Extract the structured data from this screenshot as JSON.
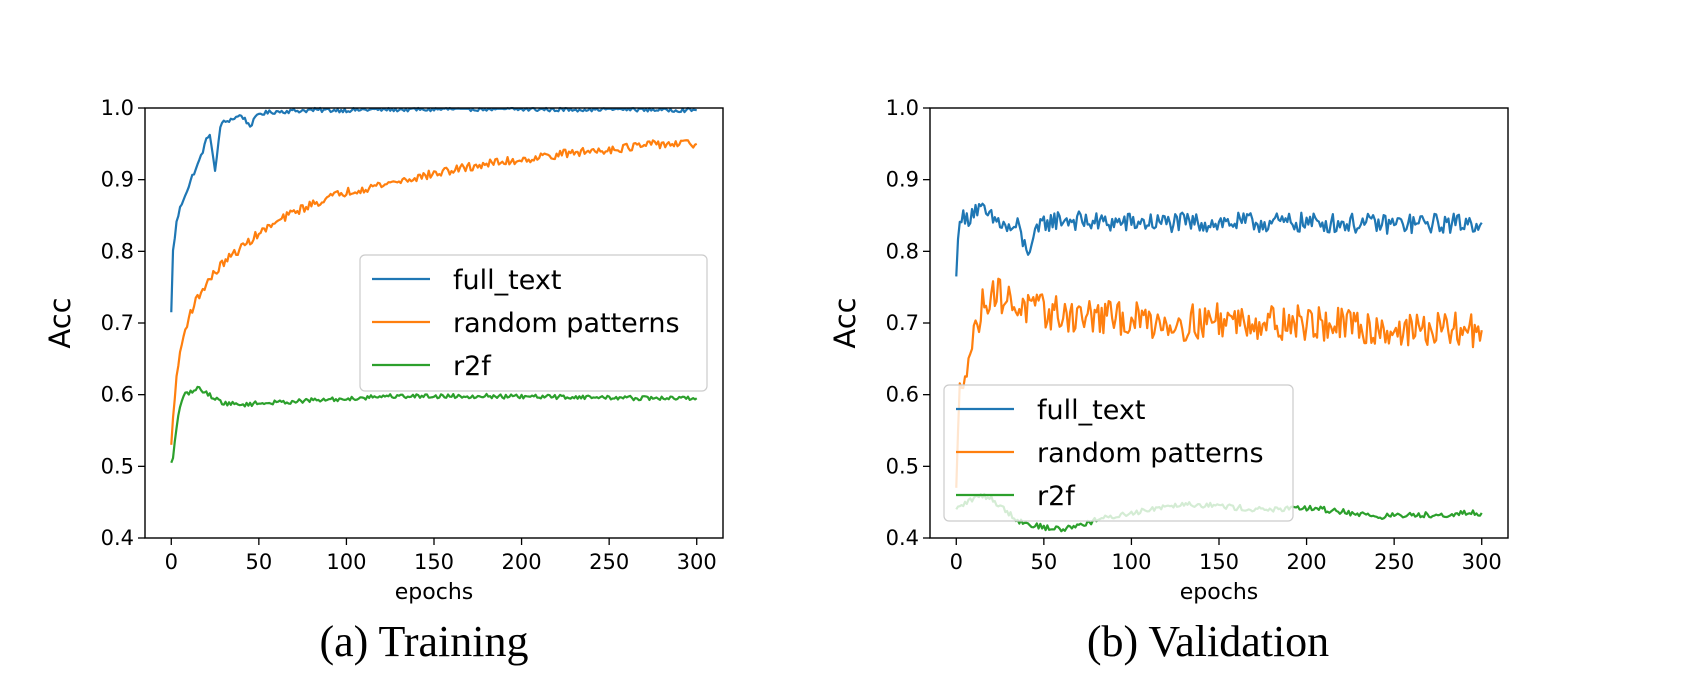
{
  "chart_data": [
    {
      "type": "line",
      "caption": "(a) Training",
      "xlabel": "epochs",
      "ylabel": "Acc",
      "xlim": [
        -15,
        315
      ],
      "ylim": [
        0.4,
        1.0
      ],
      "xticks": [
        "0",
        "50",
        "100",
        "150",
        "200",
        "250",
        "300"
      ],
      "yticks": [
        "0.4",
        "0.5",
        "0.6",
        "0.7",
        "0.8",
        "0.9",
        "1.0"
      ],
      "grid": false,
      "legend_position": "center-right",
      "series": [
        {
          "name": "full_text",
          "color": "#1f77b4",
          "x": [
            0,
            1,
            3,
            5,
            8,
            10,
            12,
            15,
            18,
            20,
            22,
            25,
            28,
            30,
            35,
            40,
            45,
            50,
            60,
            70,
            80,
            100,
            120,
            150,
            180,
            200,
            230,
            250,
            270,
            300
          ],
          "y": [
            0.715,
            0.8,
            0.84,
            0.86,
            0.88,
            0.89,
            0.905,
            0.92,
            0.94,
            0.955,
            0.965,
            0.91,
            0.975,
            0.98,
            0.985,
            0.99,
            0.975,
            0.992,
            0.995,
            0.996,
            0.997,
            0.997,
            0.998,
            0.998,
            0.999,
            0.998,
            0.998,
            0.999,
            0.998,
            0.997
          ],
          "noise": 0.003
        },
        {
          "name": "random patterns",
          "color": "#ff7f0e",
          "x": [
            0,
            2,
            5,
            8,
            10,
            15,
            20,
            25,
            30,
            40,
            50,
            60,
            70,
            80,
            90,
            100,
            120,
            140,
            160,
            180,
            200,
            220,
            240,
            260,
            280,
            300
          ],
          "y": [
            0.53,
            0.6,
            0.66,
            0.69,
            0.71,
            0.735,
            0.755,
            0.77,
            0.785,
            0.805,
            0.825,
            0.84,
            0.855,
            0.865,
            0.875,
            0.883,
            0.893,
            0.903,
            0.913,
            0.922,
            0.928,
            0.935,
            0.94,
            0.945,
            0.95,
            0.95
          ],
          "noise": 0.006
        },
        {
          "name": "r2f",
          "color": "#2ca02c",
          "x": [
            0,
            1,
            3,
            5,
            8,
            10,
            13,
            16,
            20,
            25,
            30,
            40,
            50,
            60,
            80,
            100,
            120,
            150,
            180,
            200,
            220,
            250,
            270,
            300
          ],
          "y": [
            0.505,
            0.51,
            0.555,
            0.585,
            0.6,
            0.603,
            0.605,
            0.61,
            0.602,
            0.595,
            0.588,
            0.586,
            0.588,
            0.589,
            0.592,
            0.594,
            0.598,
            0.598,
            0.598,
            0.597,
            0.597,
            0.596,
            0.595,
            0.595
          ],
          "noise": 0.003
        }
      ]
    },
    {
      "type": "line",
      "caption": "(b) Validation",
      "xlabel": "epochs",
      "ylabel": "Acc",
      "xlim": [
        -15,
        315
      ],
      "ylim": [
        0.4,
        1.0
      ],
      "xticks": [
        "0",
        "50",
        "100",
        "150",
        "200",
        "250",
        "300"
      ],
      "yticks": [
        "0.4",
        "0.5",
        "0.6",
        "0.7",
        "0.8",
        "0.9",
        "1.0"
      ],
      "grid": false,
      "legend_position": "lower-left",
      "series": [
        {
          "name": "full_text",
          "color": "#1f77b4",
          "x": [
            0,
            2,
            5,
            10,
            15,
            20,
            25,
            30,
            35,
            40,
            50,
            60,
            80,
            100,
            150,
            200,
            250,
            300
          ],
          "y": [
            0.765,
            0.855,
            0.84,
            0.86,
            0.855,
            0.845,
            0.84,
            0.83,
            0.835,
            0.8,
            0.84,
            0.845,
            0.84,
            0.84,
            0.84,
            0.84,
            0.838,
            0.84
          ],
          "noise": 0.014
        },
        {
          "name": "random patterns",
          "color": "#ff7f0e",
          "x": [
            0,
            2,
            5,
            8,
            12,
            16,
            20,
            25,
            30,
            40,
            50,
            70,
            100,
            130,
            150,
            200,
            250,
            300
          ],
          "y": [
            0.47,
            0.6,
            0.645,
            0.66,
            0.7,
            0.73,
            0.745,
            0.74,
            0.73,
            0.72,
            0.715,
            0.71,
            0.705,
            0.7,
            0.705,
            0.7,
            0.69,
            0.69
          ],
          "noise": 0.025
        },
        {
          "name": "r2f",
          "color": "#2ca02c",
          "x": [
            0,
            3,
            6,
            10,
            15,
            20,
            25,
            30,
            35,
            40,
            50,
            60,
            70,
            80,
            90,
            100,
            110,
            120,
            130,
            150,
            170,
            190,
            200,
            220,
            240,
            260,
            280,
            300
          ],
          "y": [
            0.44,
            0.445,
            0.45,
            0.455,
            0.46,
            0.455,
            0.445,
            0.435,
            0.425,
            0.42,
            0.415,
            0.412,
            0.418,
            0.425,
            0.43,
            0.435,
            0.44,
            0.445,
            0.448,
            0.445,
            0.44,
            0.44,
            0.442,
            0.437,
            0.43,
            0.432,
            0.433,
            0.435
          ],
          "noise": 0.004
        }
      ]
    }
  ]
}
